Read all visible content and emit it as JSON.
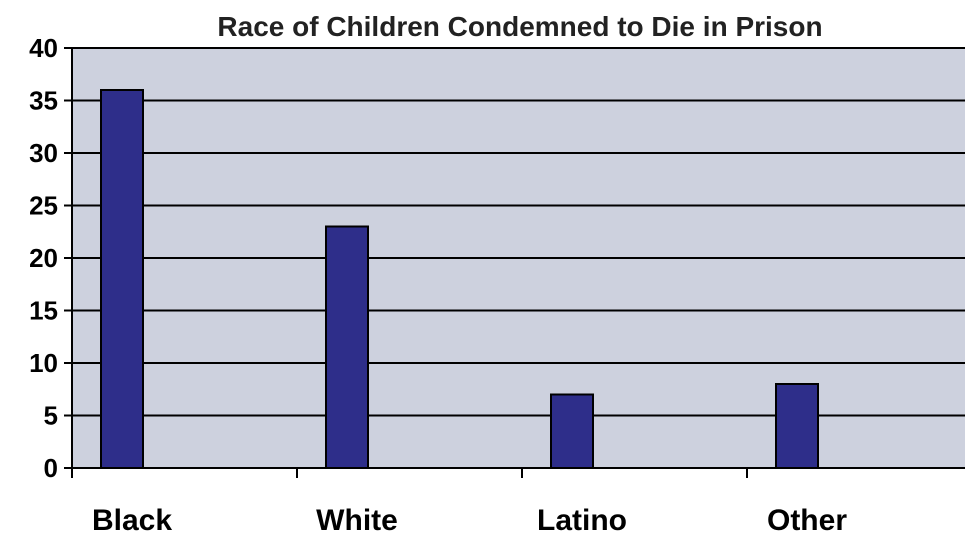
{
  "chart_data": {
    "type": "bar",
    "title": "Race of Children Condemned to Die in Prison",
    "xlabel": "",
    "ylabel": "",
    "categories": [
      "Black",
      "White",
      "Latino",
      "Other"
    ],
    "values": [
      36,
      23,
      7,
      8
    ],
    "ylim": [
      0,
      40
    ],
    "yticks": [
      0,
      5,
      10,
      15,
      20,
      25,
      30,
      35,
      40
    ],
    "grid": true,
    "legend": "none",
    "colors": {
      "bar": "#2e2e8a",
      "plot_background": "#cdd1de",
      "grid": "#000000"
    }
  }
}
